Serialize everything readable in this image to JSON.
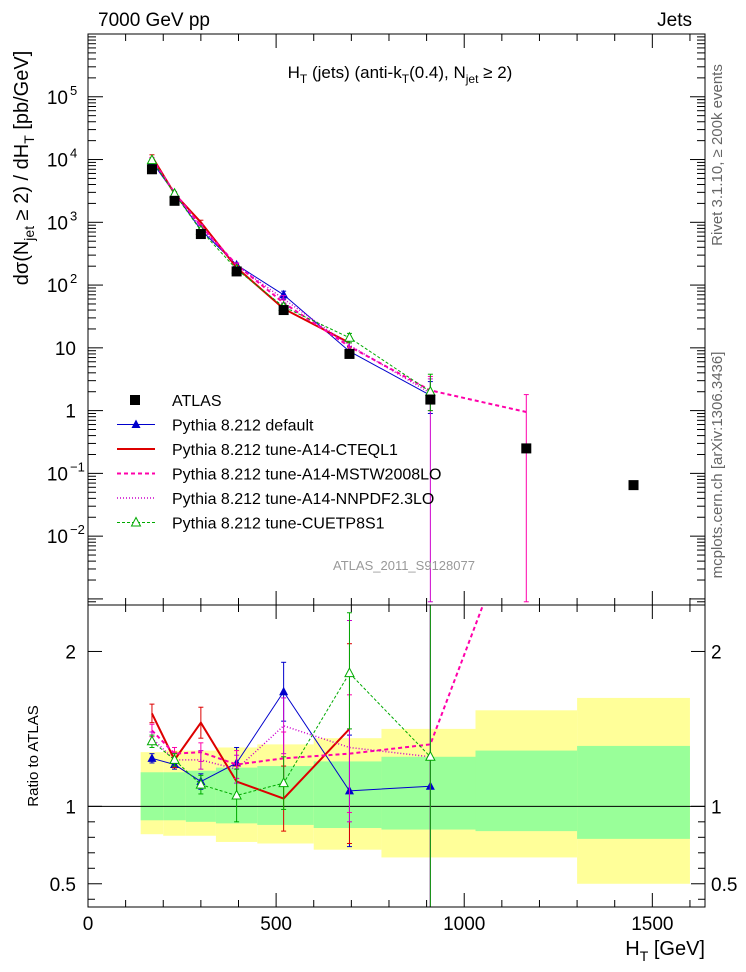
{
  "header": {
    "left": "7000 GeV pp",
    "right": "Jets"
  },
  "side_text": {
    "rivet": "Rivet 3.1.10, ≥ 200k events",
    "mcplots": "mcplots.cern.ch [arXiv:1306.3436]"
  },
  "analysis_id": "ATLAS_2011_S9128077",
  "chart_data": [
    {
      "panel": "main",
      "type": "line",
      "title": {
        "pre": "H",
        "sub": "T",
        "post": " (jets) (anti-k",
        "sub2": "T",
        "mid": "(0.4), N",
        "sub3": "jet",
        "end": " ≥ 2)"
      },
      "ylabel": "dσ(N_jet ≥ 2) / dH_T [pb/GeV]",
      "yscale": "log",
      "xlim": [
        0,
        1640
      ],
      "ylim": [
        0.0008,
        1000000
      ],
      "y_ticks": [
        {
          "v": 0.01,
          "label": "10",
          "exp": "−2"
        },
        {
          "v": 0.1,
          "label": "10",
          "exp": "−1"
        },
        {
          "v": 1,
          "label": "1",
          "exp": ""
        },
        {
          "v": 10,
          "label": "10",
          "exp": ""
        },
        {
          "v": 100,
          "label": "10",
          "exp": "2"
        },
        {
          "v": 1000,
          "label": "10",
          "exp": "3"
        },
        {
          "v": 10000,
          "label": "10",
          "exp": "4"
        },
        {
          "v": 100000,
          "label": "10",
          "exp": "5"
        }
      ],
      "data": {
        "name": "ATLAS",
        "x": [
          170,
          230,
          300,
          395,
          520,
          695,
          910,
          1165,
          1450
        ],
        "y": [
          7000,
          2200,
          650,
          165,
          40,
          8,
          1.5,
          0.25,
          0.065
        ]
      },
      "series": [
        {
          "name": "Pythia 8.212 default",
          "color": "#0000cc",
          "marker": "triangle",
          "dash": "",
          "width": 1,
          "x": [
            170,
            230,
            300,
            395,
            520,
            695,
            910
          ],
          "y": [
            9200,
            2900,
            760,
            210,
            70,
            8.8,
            1.75
          ],
          "err": [
            [
              8700,
              9700
            ],
            [
              2750,
              3050
            ],
            [
              720,
              800
            ],
            [
              195,
              225
            ],
            [
              60,
              80
            ],
            [
              7,
              10.5
            ],
            [
              0.9,
              2.9
            ]
          ]
        },
        {
          "name": "Pythia 8.212 tune-A14-CTEQL1",
          "color": "#dd0000",
          "marker": "none",
          "dash": "",
          "width": 2,
          "x": [
            170,
            230,
            300,
            395,
            520,
            695
          ],
          "y": [
            11200,
            2850,
            1000,
            190,
            42,
            12
          ],
          "err": [
            [
              10500,
              11900
            ],
            [
              2700,
              3000
            ],
            [
              920,
              1080
            ],
            [
              175,
              205
            ],
            [
              36,
              48
            ],
            [
              10,
              14
            ]
          ]
        },
        {
          "name": "Pythia 8.212 tune-A14-MSTW2008LO",
          "color": "#ff00aa",
          "marker": "none",
          "dash": "4,3",
          "width": 2,
          "x": [
            170,
            230,
            300,
            395,
            520,
            695,
            910,
            1165
          ],
          "y": [
            10300,
            2950,
            880,
            210,
            52,
            10.5,
            2.1,
            0.95
          ],
          "err": [
            [
              9800,
              10800
            ],
            [
              2800,
              3100
            ],
            [
              830,
              930
            ],
            [
              195,
              225
            ],
            [
              46,
              58
            ],
            [
              9,
              12
            ],
            [
              1.0,
              3.5
            ],
            [
              0.0009,
              1.8
            ]
          ]
        },
        {
          "name": "Pythia 8.212 tune-A14-NNPDF2.3LO",
          "color": "#cc00cc",
          "marker": "none",
          "dash": "1,2",
          "width": 1.5,
          "x": [
            170,
            230,
            300,
            395,
            520,
            695,
            910
          ],
          "y": [
            10100,
            2850,
            840,
            205,
            60,
            11,
            1.9
          ],
          "err": [
            [
              9600,
              10600
            ],
            [
              2700,
              3000
            ],
            [
              790,
              890
            ],
            [
              190,
              220
            ],
            [
              52,
              68
            ],
            [
              9,
              13
            ],
            [
              0.0009,
              3.2
            ]
          ]
        },
        {
          "name": "Pythia 8.212 tune-CUETP8S1",
          "color": "#00aa00",
          "marker": "triangle-open",
          "dash": "3,2",
          "width": 1,
          "x": [
            170,
            230,
            300,
            395,
            520,
            695,
            910
          ],
          "y": [
            9800,
            2850,
            740,
            178,
            45,
            14.5,
            2.0
          ],
          "err": [
            [
              9300,
              10300
            ],
            [
              2700,
              3000
            ],
            [
              700,
              780
            ],
            [
              165,
              191
            ],
            [
              40,
              50
            ],
            [
              12,
              17
            ],
            [
              1.0,
              3.8
            ]
          ]
        }
      ]
    },
    {
      "panel": "ratio",
      "type": "line",
      "ylabel": "Ratio to ATLAS",
      "xlabel": {
        "pre": "H",
        "sub": "T",
        "post": " [GeV]"
      },
      "xlim": [
        0,
        1640
      ],
      "ylim": [
        0.35,
        2.3
      ],
      "x_ticks": [
        0,
        500,
        1000,
        1500
      ],
      "y_ticks": [
        0.5,
        1,
        2
      ],
      "bands": [
        {
          "x0": 140,
          "x1": 200,
          "yellow": [
            0.82,
            1.35
          ],
          "green": [
            0.91,
            1.22
          ]
        },
        {
          "x0": 200,
          "x1": 260,
          "yellow": [
            0.81,
            1.36
          ],
          "green": [
            0.91,
            1.22
          ]
        },
        {
          "x0": 260,
          "x1": 340,
          "yellow": [
            0.81,
            1.36
          ],
          "green": [
            0.9,
            1.23
          ]
        },
        {
          "x0": 340,
          "x1": 450,
          "yellow": [
            0.77,
            1.38
          ],
          "green": [
            0.89,
            1.25
          ]
        },
        {
          "x0": 450,
          "x1": 600,
          "yellow": [
            0.76,
            1.4
          ],
          "green": [
            0.88,
            1.26
          ]
        },
        {
          "x0": 600,
          "x1": 780,
          "yellow": [
            0.72,
            1.44
          ],
          "green": [
            0.86,
            1.29
          ]
        },
        {
          "x0": 780,
          "x1": 1030,
          "yellow": [
            0.67,
            1.5
          ],
          "green": [
            0.85,
            1.32
          ]
        },
        {
          "x0": 1030,
          "x1": 1300,
          "yellow": [
            0.67,
            1.62
          ],
          "green": [
            0.84,
            1.36
          ]
        },
        {
          "x0": 1300,
          "x1": 1600,
          "yellow": [
            0.5,
            1.7
          ],
          "green": [
            0.79,
            1.39
          ]
        }
      ],
      "series": [
        {
          "name": "Pythia 8.212 default",
          "color": "#0000cc",
          "marker": "triangle",
          "dash": "",
          "width": 1,
          "x": [
            170,
            230,
            300,
            395,
            520,
            695,
            910
          ],
          "y": [
            1.31,
            1.27,
            1.16,
            1.28,
            1.74,
            1.1,
            1.13
          ],
          "err": [
            [
              1.28,
              1.34
            ],
            [
              1.24,
              1.3
            ],
            [
              1.11,
              1.21
            ],
            [
              1.18,
              1.38
            ],
            [
              1.55,
              1.93
            ],
            [
              0.74,
              1.46
            ],
            [
              0.25,
              2.3
            ]
          ]
        },
        {
          "name": "Pythia 8.212 tune-A14-CTEQL1",
          "color": "#dd0000",
          "marker": "none",
          "dash": "",
          "width": 2,
          "x": [
            170,
            230,
            300,
            395,
            520,
            695
          ],
          "y": [
            1.6,
            1.3,
            1.54,
            1.16,
            1.05,
            1.5
          ],
          "err": [
            [
              1.54,
              1.66
            ],
            [
              1.25,
              1.35
            ],
            [
              1.44,
              1.64
            ],
            [
              1.06,
              1.26
            ],
            [
              0.84,
              1.26
            ],
            [
              0.76,
              2.05
            ]
          ]
        },
        {
          "name": "Pythia 8.212 tune-A14-MSTW2008LO",
          "color": "#ff00aa",
          "marker": "none",
          "dash": "4,3",
          "width": 2,
          "x": [
            170,
            230,
            300,
            395,
            520,
            695,
            910,
            1050
          ],
          "y": [
            1.49,
            1.34,
            1.35,
            1.27,
            1.31,
            1.34,
            1.4,
            2.3
          ],
          "err": [
            [
              1.45,
              1.53
            ],
            [
              1.3,
              1.38
            ],
            [
              1.29,
              1.41
            ],
            [
              1.18,
              1.36
            ],
            [
              1.14,
              1.48
            ],
            [
              0.96,
              1.72
            ],
            [
              0.25,
              2.3
            ],
            null
          ]
        },
        {
          "name": "Pythia 8.212 tune-A14-NNPDF2.3LO",
          "color": "#cc00cc",
          "marker": "none",
          "dash": "1,2",
          "width": 1.5,
          "x": [
            170,
            230,
            300,
            395,
            520,
            695,
            910
          ],
          "y": [
            1.44,
            1.3,
            1.3,
            1.24,
            1.52,
            1.38,
            1.32
          ],
          "err": [
            [
              1.4,
              1.48
            ],
            [
              1.26,
              1.34
            ],
            [
              1.24,
              1.36
            ],
            [
              1.15,
              1.33
            ],
            [
              1.34,
              1.7
            ],
            [
              0.9,
              2.2
            ],
            [
              0.25,
              2.3
            ]
          ]
        },
        {
          "name": "Pythia 8.212 tune-CUETP8S1",
          "color": "#00aa00",
          "marker": "triangle-open",
          "dash": "3,2",
          "width": 1,
          "x": [
            170,
            230,
            300,
            395,
            520,
            695,
            910
          ],
          "y": [
            1.42,
            1.3,
            1.14,
            1.07,
            1.15,
            1.86,
            1.32
          ],
          "err": [
            [
              1.38,
              1.46
            ],
            [
              1.26,
              1.34
            ],
            [
              1.08,
              1.2
            ],
            [
              0.9,
              1.24
            ],
            [
              0.98,
              1.32
            ],
            [
              1.5,
              2.25
            ],
            [
              0.25,
              2.3
            ]
          ]
        }
      ]
    }
  ]
}
